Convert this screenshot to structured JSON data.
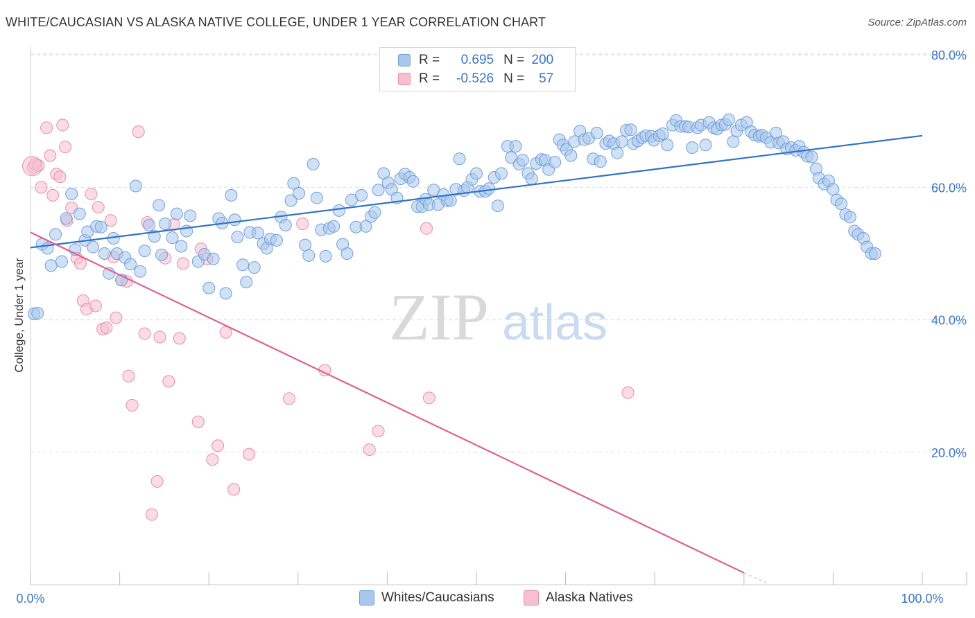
{
  "title": "WHITE/CAUCASIAN VS ALASKA NATIVE COLLEGE, UNDER 1 YEAR CORRELATION CHART",
  "source": "Source: ZipAtlas.com",
  "watermark": {
    "zip": "ZIP",
    "atlas": "atlas"
  },
  "legend": {
    "rows": [
      {
        "r_label": "R =",
        "r_value": "0.695",
        "n_label": "N =",
        "n_value": "200"
      },
      {
        "r_label": "R =",
        "r_value": "-0.526",
        "n_label": "N =",
        "n_value": "57"
      }
    ]
  },
  "colors": {
    "blue": "#a9c7ec",
    "blue_edge": "#6f9fd8",
    "blue_line": "#2f72c8",
    "pink": "#f7c0d1",
    "pink_edge": "#e98aa8",
    "pink_line": "#e0608f",
    "tick_label": "#3a76c4",
    "grid": "#dddddd"
  },
  "chart_data": {
    "type": "scatter",
    "xlabel": "",
    "ylabel": "College, Under 1 year",
    "xlim": [
      0,
      100
    ],
    "ylim": [
      0,
      84
    ],
    "x_tick_labels": [
      "0.0%",
      "100.0%"
    ],
    "y_ticks": [
      20,
      40,
      60,
      80
    ],
    "y_tick_labels": [
      "20.0%",
      "40.0%",
      "60.0%",
      "80.0%"
    ],
    "grid": true,
    "legend_position": "top-center",
    "series": [
      {
        "name": "Whites/Caucasians",
        "color": "#a9c7ec",
        "trend": [
          [
            0,
            50.9
          ],
          [
            100,
            67.8
          ]
        ],
        "points": [
          [
            0.4,
            40.9
          ],
          [
            0.8,
            41
          ],
          [
            1.3,
            51.4
          ],
          [
            1.9,
            50.8
          ],
          [
            2.3,
            48.2
          ],
          [
            2.8,
            52.9
          ],
          [
            3.5,
            48.8
          ],
          [
            4,
            55.3
          ],
          [
            4.6,
            59
          ],
          [
            5,
            50.6
          ],
          [
            5.5,
            56
          ],
          [
            6.1,
            52
          ],
          [
            6.4,
            53.3
          ],
          [
            7,
            51
          ],
          [
            7.4,
            54.1
          ],
          [
            7.9,
            54
          ],
          [
            8.3,
            50
          ],
          [
            8.8,
            47
          ],
          [
            9.3,
            52.3
          ],
          [
            9.7,
            50
          ],
          [
            10.2,
            46
          ],
          [
            10.6,
            49.4
          ],
          [
            11.2,
            48.4
          ],
          [
            11.8,
            60.2
          ],
          [
            12.3,
            47.3
          ],
          [
            12.8,
            50.4
          ],
          [
            13.3,
            54.3
          ],
          [
            13.9,
            52.6
          ],
          [
            14.4,
            57.3
          ],
          [
            14.7,
            49.8
          ],
          [
            15.1,
            54.5
          ],
          [
            15.9,
            52.4
          ],
          [
            16.4,
            56
          ],
          [
            16.9,
            51.1
          ],
          [
            17.5,
            53.4
          ],
          [
            17.9,
            55.7
          ],
          [
            18.8,
            48.8
          ],
          [
            19.5,
            49.9
          ],
          [
            20,
            44.8
          ],
          [
            20.5,
            49.2
          ],
          [
            21.1,
            55.3
          ],
          [
            21.5,
            54.6
          ],
          [
            21.9,
            44
          ],
          [
            22.5,
            58.8
          ],
          [
            22.9,
            55.1
          ],
          [
            23.2,
            52.5
          ],
          [
            23.8,
            48.3
          ],
          [
            24.2,
            45.7
          ],
          [
            24.6,
            53.2
          ],
          [
            25.1,
            47.9
          ],
          [
            25.5,
            53.1
          ],
          [
            26.1,
            51.5
          ],
          [
            26.5,
            50.8
          ],
          [
            26.9,
            52.2
          ],
          [
            27.6,
            52
          ],
          [
            28.1,
            55.5
          ],
          [
            28.6,
            54.3
          ],
          [
            29.2,
            58
          ],
          [
            29.5,
            60.6
          ],
          [
            30.1,
            59.1
          ],
          [
            30.8,
            51.3
          ],
          [
            31.2,
            49.7
          ],
          [
            31.7,
            63.5
          ],
          [
            32.1,
            58.4
          ],
          [
            32.6,
            53.6
          ],
          [
            33.1,
            49.6
          ],
          [
            33.5,
            53.8
          ],
          [
            34,
            54.1
          ],
          [
            34.6,
            56.5
          ],
          [
            35,
            51.4
          ],
          [
            35.5,
            50
          ],
          [
            36,
            58.1
          ],
          [
            36.5,
            54
          ],
          [
            37.1,
            58.8
          ],
          [
            37.6,
            54.1
          ],
          [
            38.2,
            55.6
          ],
          [
            38.6,
            56.2
          ],
          [
            39,
            59.6
          ],
          [
            39.6,
            62.1
          ],
          [
            40.1,
            60.7
          ],
          [
            40.5,
            59.7
          ],
          [
            41.1,
            58.4
          ],
          [
            41.5,
            61.3
          ],
          [
            42,
            62
          ],
          [
            42.5,
            61.5
          ],
          [
            42.9,
            60.9
          ],
          [
            43.4,
            57.1
          ],
          [
            43.9,
            57.1
          ],
          [
            44.3,
            58.2
          ],
          [
            44.7,
            57.4
          ],
          [
            45.2,
            59.6
          ],
          [
            45.7,
            57.4
          ],
          [
            46.3,
            58.9
          ],
          [
            46.7,
            58
          ],
          [
            47.1,
            58
          ],
          [
            47.7,
            59.7
          ],
          [
            48.1,
            64.3
          ],
          [
            48.6,
            59.5
          ],
          [
            49,
            60
          ],
          [
            49.5,
            61.2
          ],
          [
            50,
            62.1
          ],
          [
            50.4,
            59.4
          ],
          [
            51,
            59.4
          ],
          [
            51.4,
            59.8
          ],
          [
            52,
            61.5
          ],
          [
            52.4,
            57.2
          ],
          [
            52.8,
            62.1
          ],
          [
            53.5,
            66.2
          ],
          [
            53.9,
            64.5
          ],
          [
            54.4,
            66.2
          ],
          [
            54.8,
            63.5
          ],
          [
            55.2,
            64.1
          ],
          [
            55.8,
            62.1
          ],
          [
            56.2,
            61.3
          ],
          [
            56.7,
            63.6
          ],
          [
            57.3,
            64.2
          ],
          [
            57.7,
            64.1
          ],
          [
            58.1,
            62.7
          ],
          [
            58.8,
            63.8
          ],
          [
            59.3,
            67.2
          ],
          [
            59.7,
            66.4
          ],
          [
            60.1,
            65.7
          ],
          [
            60.6,
            64.8
          ],
          [
            61,
            66.9
          ],
          [
            61.6,
            68.5
          ],
          [
            62.1,
            67.2
          ],
          [
            62.6,
            67.4
          ],
          [
            63.1,
            64.3
          ],
          [
            63.5,
            68.2
          ],
          [
            63.9,
            63.9
          ],
          [
            64.5,
            66.6
          ],
          [
            64.9,
            67
          ],
          [
            65.4,
            66.6
          ],
          [
            65.8,
            65.2
          ],
          [
            66.3,
            66.9
          ],
          [
            66.8,
            68.6
          ],
          [
            67.3,
            68.7
          ],
          [
            67.6,
            66.6
          ],
          [
            68.1,
            67
          ],
          [
            68.6,
            67.5
          ],
          [
            69,
            67.8
          ],
          [
            69.6,
            67.7
          ],
          [
            69.9,
            67.1
          ],
          [
            70.5,
            67.8
          ],
          [
            70.9,
            68.1
          ],
          [
            71.4,
            66.4
          ],
          [
            72,
            69.4
          ],
          [
            72.4,
            70.1
          ],
          [
            72.9,
            69.2
          ],
          [
            73.4,
            69.2
          ],
          [
            73.8,
            69.1
          ],
          [
            74.2,
            66
          ],
          [
            74.8,
            69
          ],
          [
            75.2,
            69.4
          ],
          [
            75.7,
            66.4
          ],
          [
            76.1,
            69.8
          ],
          [
            76.6,
            69
          ],
          [
            77,
            68.8
          ],
          [
            77.5,
            69.4
          ],
          [
            77.9,
            69.5
          ],
          [
            78.3,
            70.2
          ],
          [
            78.8,
            66.9
          ],
          [
            79.2,
            68.5
          ],
          [
            79.7,
            69.4
          ],
          [
            80.3,
            69.8
          ],
          [
            80.8,
            68.4
          ],
          [
            81.2,
            67.9
          ],
          [
            81.7,
            67.7
          ],
          [
            82,
            67.9
          ],
          [
            82.5,
            67.5
          ],
          [
            83,
            66.8
          ],
          [
            83.6,
            68.2
          ],
          [
            83.9,
            66.7
          ],
          [
            84.4,
            66.9
          ],
          [
            84.8,
            65.8
          ],
          [
            85.3,
            66
          ],
          [
            85.8,
            65.6
          ],
          [
            86.2,
            66.2
          ],
          [
            86.7,
            65.3
          ],
          [
            87.1,
            64.7
          ],
          [
            87.6,
            64.6
          ],
          [
            88.1,
            62.8
          ],
          [
            88.4,
            61.4
          ],
          [
            89,
            60.5
          ],
          [
            89.5,
            61
          ],
          [
            90,
            59.7
          ],
          [
            90.4,
            58.1
          ],
          [
            90.9,
            57.5
          ],
          [
            91.4,
            55.9
          ],
          [
            91.9,
            55.5
          ],
          [
            92.4,
            53.4
          ],
          [
            92.8,
            52.9
          ],
          [
            93.4,
            52.3
          ],
          [
            93.8,
            51
          ],
          [
            94.3,
            50
          ],
          [
            94.7,
            50
          ]
        ]
      },
      {
        "name": "Alaska Natives",
        "color": "#f7c0d1",
        "trend": [
          [
            0,
            53.2
          ],
          [
            80,
            1.8
          ]
        ],
        "trend_dashed": [
          [
            80,
            1.8
          ],
          [
            82.5,
            0.3
          ]
        ],
        "points": [
          [
            0.3,
            63
          ],
          [
            0.5,
            63.5
          ],
          [
            0.9,
            63.3
          ],
          [
            1.2,
            60
          ],
          [
            1.8,
            69
          ],
          [
            2.2,
            64.8
          ],
          [
            2.5,
            58.8
          ],
          [
            2.9,
            62
          ],
          [
            3.3,
            61.6
          ],
          [
            3.6,
            69.4
          ],
          [
            3.9,
            66.1
          ],
          [
            4.1,
            55
          ],
          [
            4.6,
            56.9
          ],
          [
            5.2,
            49.3
          ],
          [
            5.6,
            48.5
          ],
          [
            5.9,
            42.9
          ],
          [
            6.3,
            41.6
          ],
          [
            6.8,
            59
          ],
          [
            7.3,
            42.1
          ],
          [
            7.6,
            57
          ],
          [
            8.1,
            38.6
          ],
          [
            8.5,
            38.8
          ],
          [
            9,
            55
          ],
          [
            9.3,
            49.5
          ],
          [
            9.6,
            40.3
          ],
          [
            10.2,
            46
          ],
          [
            10.8,
            45.8
          ],
          [
            11,
            31.5
          ],
          [
            11.4,
            27.1
          ],
          [
            12.1,
            68.4
          ],
          [
            12.8,
            37.9
          ],
          [
            13.1,
            54.7
          ],
          [
            13.6,
            10.6
          ],
          [
            14.2,
            15.6
          ],
          [
            14.5,
            37.4
          ],
          [
            15.1,
            49.3
          ],
          [
            15.5,
            30.7
          ],
          [
            16.1,
            54.4
          ],
          [
            16.7,
            37.2
          ],
          [
            17.1,
            48.5
          ],
          [
            18.8,
            24.6
          ],
          [
            19.1,
            50.7
          ],
          [
            19.8,
            49.2
          ],
          [
            20.4,
            18.9
          ],
          [
            21,
            21
          ],
          [
            21.9,
            38.1
          ],
          [
            22.8,
            14.4
          ],
          [
            24.5,
            19.7
          ],
          [
            29,
            28.1
          ],
          [
            30.5,
            54.5
          ],
          [
            33,
            32.4
          ],
          [
            38,
            20.4
          ],
          [
            39,
            23.2
          ],
          [
            44.7,
            28.2
          ],
          [
            44.4,
            53.8
          ],
          [
            67,
            29
          ]
        ]
      }
    ]
  },
  "bottom_legend": [
    "Whites/Caucasians",
    "Alaska Natives"
  ]
}
